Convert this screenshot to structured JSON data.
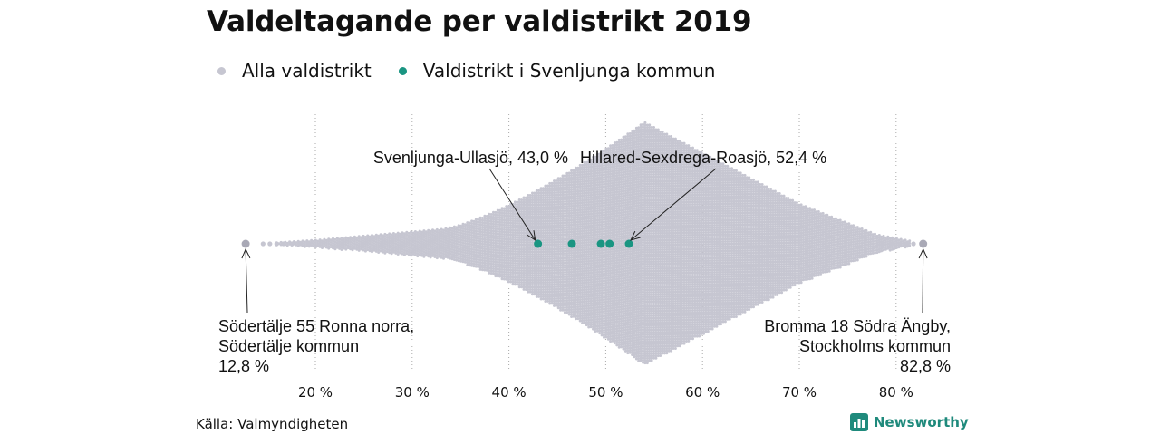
{
  "title": "Valdeltagande per valdistrikt 2019",
  "legend": {
    "all_label": "Alla valdistrikt",
    "all_color": "#c6c6d1",
    "local_label": "Valdistrikt i Svenljunga kommun",
    "local_color": "#1a9582"
  },
  "source": "Källa: Valmyndigheten",
  "brand": "Newsworthy",
  "chart_data": {
    "type": "beeswarm",
    "title": "Valdeltagande per valdistrikt 2019",
    "xlim": [
      10,
      85
    ],
    "xticks": [
      20,
      30,
      40,
      50,
      60,
      70,
      80
    ],
    "tick_labels": [
      "20 %",
      "30 %",
      "40 %",
      "50 %",
      "60 %",
      "70 %",
      "80 %"
    ],
    "grid": "vertical dotted",
    "legend_position": "top-left",
    "series": [
      {
        "name": "Alla valdistrikt",
        "color": "#c6c6d1",
        "min": 12.8,
        "max": 82.8,
        "peak": 54,
        "distribution": "dense beeswarm of all districts, peak around 54 %"
      },
      {
        "name": "Valdistrikt i Svenljunga kommun",
        "color": "#1a9582",
        "values": [
          43.0,
          46.5,
          49.5,
          50.4,
          52.4
        ]
      }
    ],
    "annotations": [
      {
        "lines": [
          "Svenljunga-Ullasjö, 43,0 %"
        ],
        "value": 43.0
      },
      {
        "lines": [
          "Hillared-Sexdrega-Roasjö, 52,4 %"
        ],
        "value": 52.4
      },
      {
        "lines": [
          "Södertälje 55 Ronna norra,",
          "Södertälje kommun",
          "12,8 %"
        ],
        "value": 12.8
      },
      {
        "lines": [
          "Bromma 18 Södra Ängby,",
          "Stockholms kommun",
          "82,8 %"
        ],
        "value": 82.8
      }
    ]
  }
}
